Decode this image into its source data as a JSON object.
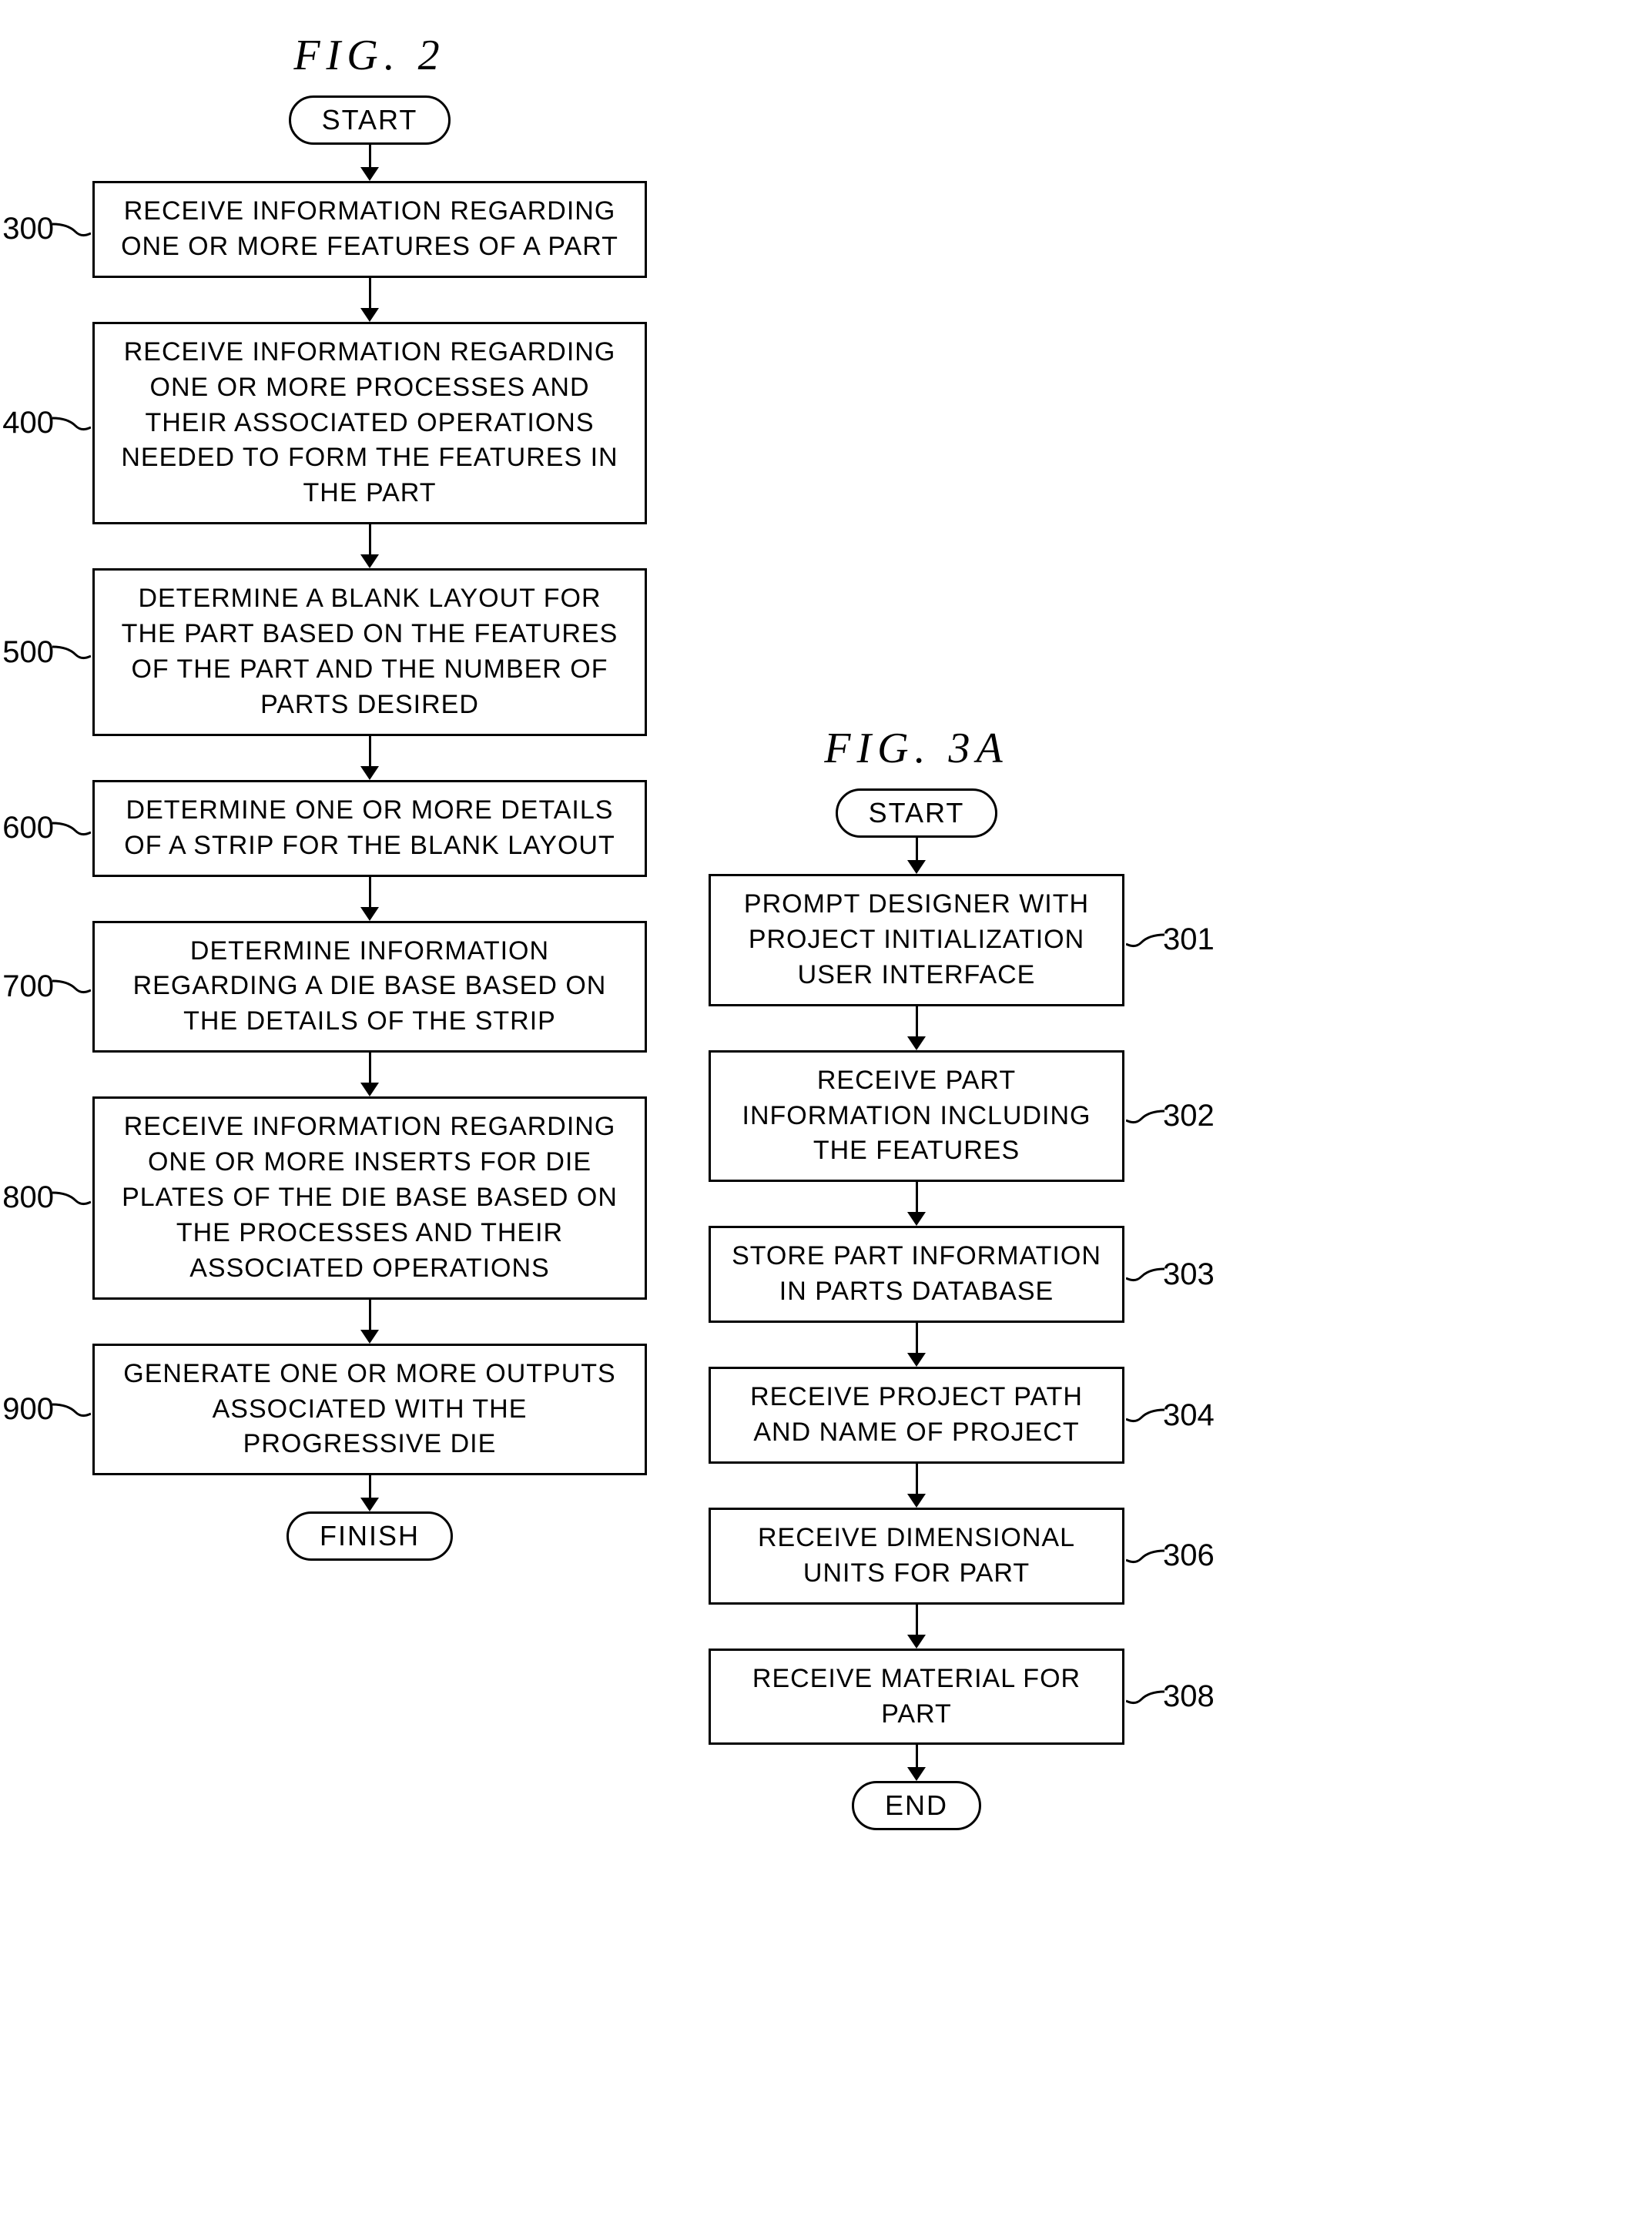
{
  "fig2": {
    "title": "FIG. 2",
    "start": "START",
    "finish": "FINISH",
    "steps": [
      {
        "ref": "300",
        "text": "RECEIVE INFORMATION REGARDING ONE OR MORE FEATURES OF A PART"
      },
      {
        "ref": "400",
        "text": "RECEIVE INFORMATION REGARDING ONE OR MORE PROCESSES AND THEIR ASSOCIATED OPERATIONS NEEDED TO FORM THE FEATURES IN THE PART"
      },
      {
        "ref": "500",
        "text": "DETERMINE A BLANK LAYOUT FOR THE PART BASED ON THE FEATURES OF THE PART AND THE NUMBER OF PARTS DESIRED"
      },
      {
        "ref": "600",
        "text": "DETERMINE ONE OR MORE DETAILS OF A STRIP FOR THE BLANK LAYOUT"
      },
      {
        "ref": "700",
        "text": "DETERMINE INFORMATION REGARDING A DIE BASE BASED ON THE DETAILS OF THE STRIP"
      },
      {
        "ref": "800",
        "text": "RECEIVE INFORMATION REGARDING ONE OR MORE INSERTS FOR DIE PLATES OF THE DIE BASE BASED ON THE PROCESSES AND THEIR ASSOCIATED OPERATIONS"
      },
      {
        "ref": "900",
        "text": "GENERATE ONE OR MORE OUTPUTS ASSOCIATED WITH THE PROGRESSIVE DIE"
      }
    ]
  },
  "fig3a": {
    "title": "FIG. 3A",
    "start": "START",
    "finish": "END",
    "steps": [
      {
        "ref": "301",
        "text": "PROMPT DESIGNER WITH PROJECT INITIALIZATION USER INTERFACE"
      },
      {
        "ref": "302",
        "text": "RECEIVE PART INFORMATION INCLUDING THE FEATURES"
      },
      {
        "ref": "303",
        "text": "STORE PART INFORMATION IN PARTS DATABASE"
      },
      {
        "ref": "304",
        "text": "RECEIVE PROJECT PATH AND NAME OF PROJECT"
      },
      {
        "ref": "306",
        "text": "RECEIVE DIMENSIONAL UNITS FOR PART"
      },
      {
        "ref": "308",
        "text": "RECEIVE MATERIAL FOR PART"
      }
    ]
  },
  "style": {
    "arrow_short": 30,
    "arrow_med": 40,
    "line_color": "#000000",
    "bg_color": "#ffffff",
    "box_border": 3,
    "font_size_box": 34,
    "font_size_ref": 40,
    "font_size_title": 56
  }
}
